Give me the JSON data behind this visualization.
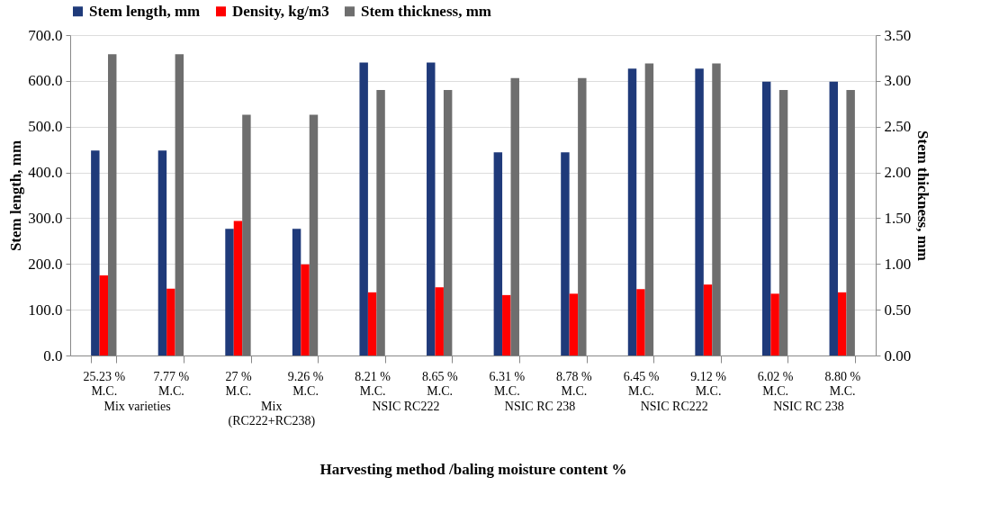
{
  "chart_data": {
    "type": "bar",
    "xlabel": "Harvesting method /baling moisture content  %",
    "ylabel": "Stem length, mm",
    "y2label": "Stem thickness, mm",
    "categories": [
      "25.23 %\nM.C.",
      "7.77 %\nM.C.",
      "27 %\nM.C.",
      "9.26 %\nM.C.",
      "8.21 %\nM.C.",
      "8.65 %\nM.C.",
      "6.31 %\nM.C.",
      "8.78 %\nM.C.",
      "6.45 %\nM.C.",
      "9.12 %\nM.C.",
      "6.02 %\nM.C.",
      "8.80 %\nM.C."
    ],
    "series": [
      {
        "name": "Stem length, mm",
        "color": "#1f3a7a",
        "values": [
          448,
          448,
          277,
          277,
          640,
          640,
          444,
          444,
          627,
          627,
          598,
          598
        ]
      },
      {
        "name": "Density, kg/m3",
        "color": "#ff0000",
        "values": [
          175,
          146,
          294,
          199,
          138,
          149,
          132,
          135,
          145,
          155,
          135,
          138
        ]
      },
      {
        "name": "Stem thickness, mm",
        "color": "#6e6e6e",
        "axis": "y2",
        "values": [
          3.29,
          3.29,
          2.63,
          2.63,
          2.9,
          2.9,
          3.03,
          3.03,
          3.19,
          3.19,
          2.9,
          2.9
        ]
      }
    ],
    "ylim": [
      0,
      700
    ],
    "yticks": [
      {
        "value": 0,
        "label": "0.0"
      },
      {
        "value": 100,
        "label": "100.0"
      },
      {
        "value": 200,
        "label": "200.0"
      },
      {
        "value": 300,
        "label": "300.0"
      },
      {
        "value": 400,
        "label": "400.0"
      },
      {
        "value": 500,
        "label": "500.0"
      },
      {
        "value": 600,
        "label": "600.0"
      },
      {
        "value": 700,
        "label": "700.0"
      }
    ],
    "y2lim": [
      0,
      3.5
    ],
    "y2ticks": [
      {
        "value": 0,
        "label": "0.00"
      },
      {
        "value": 0.5,
        "label": "0.50"
      },
      {
        "value": 1,
        "label": "1.00"
      },
      {
        "value": 1.5,
        "label": "1.50"
      },
      {
        "value": 2,
        "label": "2.00"
      },
      {
        "value": 2.5,
        "label": "2.50"
      },
      {
        "value": 3,
        "label": "3.00"
      },
      {
        "value": 3.5,
        "label": "3.50"
      }
    ],
    "annotations": [
      "Mix varieties",
      "Mix\n(RC222+RC238)",
      "NSIC RC222",
      "NSIC RC 238",
      "NSIC RC222",
      "NSIC RC 238"
    ],
    "grid": "y",
    "legend": "top"
  }
}
